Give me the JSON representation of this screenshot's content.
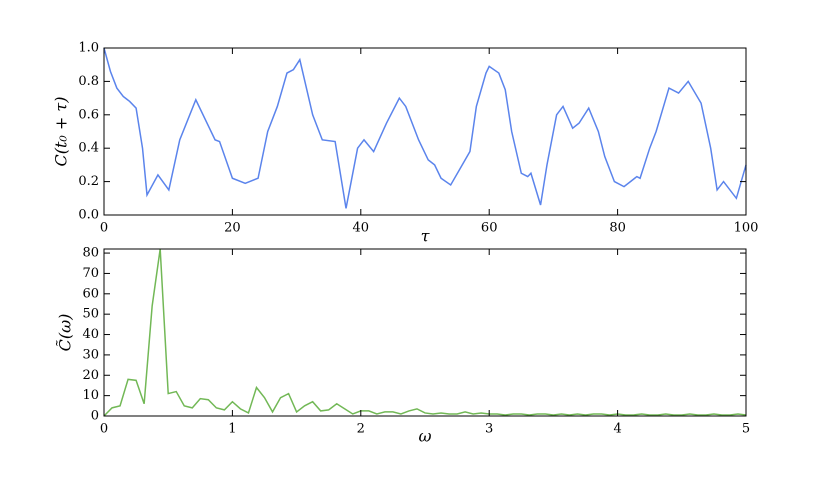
{
  "chart_data": [
    {
      "type": "line",
      "xlabel": "τ",
      "ylabel": "C(t₀ + τ)",
      "x": [
        0,
        1,
        2,
        3,
        4,
        5,
        6,
        6.7,
        8.4,
        10.1,
        11.8,
        14.3,
        17.3,
        18,
        20,
        22,
        24,
        25.5,
        27,
        28.5,
        29.5,
        30.5,
        32.5,
        34,
        36,
        37.7,
        39.5,
        40.5,
        42,
        44,
        46,
        47,
        49,
        50.5,
        51.5,
        52.5,
        54,
        55.5,
        57,
        58,
        59.5,
        60,
        61.5,
        62.5,
        63.5,
        65,
        66,
        66.5,
        68,
        69,
        70.5,
        71.5,
        73,
        74,
        75.5,
        77,
        78,
        79.5,
        81,
        82,
        83,
        83.5,
        85,
        86,
        88,
        89.5,
        91,
        93,
        94.5,
        95.5,
        96.5,
        98.5,
        100
      ],
      "series": [
        {
          "color": "#5b84ec",
          "values": [
            1.0,
            0.86,
            0.76,
            0.71,
            0.68,
            0.64,
            0.4,
            0.12,
            0.24,
            0.15,
            0.45,
            0.69,
            0.45,
            0.44,
            0.22,
            0.19,
            0.22,
            0.5,
            0.65,
            0.85,
            0.87,
            0.93,
            0.6,
            0.45,
            0.44,
            0.04,
            0.4,
            0.45,
            0.38,
            0.55,
            0.7,
            0.65,
            0.45,
            0.33,
            0.3,
            0.22,
            0.18,
            0.28,
            0.38,
            0.65,
            0.85,
            0.89,
            0.85,
            0.75,
            0.5,
            0.25,
            0.23,
            0.25,
            0.06,
            0.3,
            0.6,
            0.65,
            0.52,
            0.55,
            0.64,
            0.5,
            0.35,
            0.2,
            0.17,
            0.2,
            0.23,
            0.22,
            0.4,
            0.5,
            0.76,
            0.73,
            0.8,
            0.67,
            0.4,
            0.15,
            0.2,
            0.1,
            0.3
          ]
        }
      ],
      "xlim": [
        0,
        100
      ],
      "xticks": [
        0,
        20,
        40,
        60,
        80,
        100
      ],
      "ylim": [
        0,
        1
      ],
      "yticks": [
        {
          "value": 0,
          "label": "0.0"
        },
        0.2,
        0.4,
        0.6,
        0.8,
        {
          "value": 1,
          "label": "1.0"
        }
      ]
    },
    {
      "type": "line",
      "xlabel": "ω",
      "ylabel": "C̃(ω)",
      "x": [
        0,
        0.0625,
        0.125,
        0.1875,
        0.25,
        0.3125,
        0.375,
        0.4375,
        0.5,
        0.5625,
        0.625,
        0.6875,
        0.75,
        0.8125,
        0.875,
        0.9375,
        1,
        1.0625,
        1.125,
        1.1875,
        1.25,
        1.3125,
        1.375,
        1.4375,
        1.5,
        1.5625,
        1.625,
        1.6875,
        1.75,
        1.8125,
        1.875,
        1.9375,
        2,
        2.0625,
        2.125,
        2.1875,
        2.25,
        2.3125,
        2.375,
        2.4375,
        2.5,
        2.5625,
        2.625,
        2.6875,
        2.75,
        2.8125,
        2.875,
        2.9375,
        3,
        3.0625,
        3.125,
        3.1875,
        3.25,
        3.3125,
        3.375,
        3.4375,
        3.5,
        3.5625,
        3.625,
        3.6875,
        3.75,
        3.8125,
        3.875,
        3.9375,
        4,
        4.0625,
        4.125,
        4.1875,
        4.25,
        4.3125,
        4.375,
        4.4375,
        4.5,
        4.5625,
        4.625,
        4.6875,
        4.75,
        4.8125,
        4.875,
        4.9375,
        5
      ],
      "series": [
        {
          "color": "#72b856",
          "values": [
            0,
            4,
            5,
            18,
            17.5,
            6,
            54,
            82,
            11,
            12,
            5,
            4,
            8.5,
            8,
            4,
            3,
            7,
            3.5,
            1.5,
            14,
            9,
            2,
            9,
            11,
            2,
            5,
            7,
            2.5,
            3,
            6,
            3.5,
            1,
            2.5,
            2.5,
            1,
            2,
            2,
            1,
            2.5,
            3.5,
            1.5,
            1,
            1.5,
            1,
            1,
            2,
            1,
            1.5,
            1,
            1,
            0.5,
            1,
            1,
            0.5,
            1,
            1,
            0.5,
            1,
            0.5,
            1,
            0.5,
            1,
            1,
            0.5,
            1,
            0.5,
            0.5,
            1,
            0.5,
            0.5,
            1,
            0.5,
            0.5,
            1,
            0.5,
            0.5,
            1,
            0.5,
            0.5,
            1,
            0.5
          ]
        }
      ],
      "xlim": [
        0,
        5
      ],
      "xticks": [
        0,
        1,
        2,
        3,
        4,
        5
      ],
      "ylim": [
        0,
        82
      ],
      "yticks": [
        0,
        10,
        20,
        30,
        40,
        50,
        60,
        70,
        80
      ]
    }
  ]
}
